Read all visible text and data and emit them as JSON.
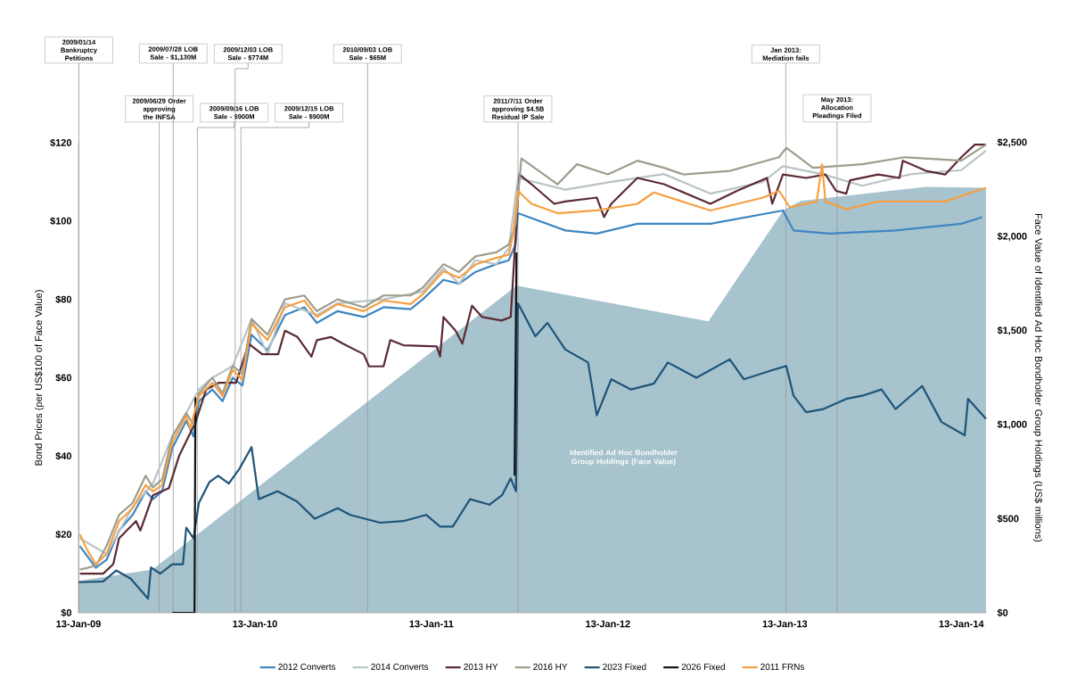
{
  "chart_data": {
    "type": "line",
    "ylabel": "Bond Prices (per US$100 of Face Value)",
    "y2label": "Face Value of Identified Ad Hoc Bondholder Group Holdings (US$ millions)",
    "xlim": [
      "2009-01-13",
      "2014-03-07"
    ],
    "xticks": [
      {
        "value": "2009-01-13",
        "label": "13-Jan-09"
      },
      {
        "value": "2010-01-13",
        "label": "13-Jan-10"
      },
      {
        "value": "2011-01-13",
        "label": "13-Jan-11"
      },
      {
        "value": "2012-01-13",
        "label": "13-Jan-12"
      },
      {
        "value": "2013-01-13",
        "label": "13-Jan-13"
      },
      {
        "value": "2014-01-13",
        "label": "13-Jan-14"
      }
    ],
    "ylim": [
      0,
      120
    ],
    "yticks": [
      {
        "value": 0,
        "label": "$0"
      },
      {
        "value": 20,
        "label": "$20"
      },
      {
        "value": 40,
        "label": "$40"
      },
      {
        "value": 60,
        "label": "$60"
      },
      {
        "value": 80,
        "label": "$80"
      },
      {
        "value": 100,
        "label": "$100"
      },
      {
        "value": 120,
        "label": "$120"
      }
    ],
    "y2lim": [
      0,
      2500
    ],
    "y2ticks": [
      {
        "value": 0,
        "label": "$0"
      },
      {
        "value": 500,
        "label": "$500"
      },
      {
        "value": 1000,
        "label": "$1,000"
      },
      {
        "value": 1500,
        "label": "$1,500"
      },
      {
        "value": 2000,
        "label": "$2,000"
      },
      {
        "value": 2500,
        "label": "$2,500"
      }
    ],
    "legend": "bottom",
    "line_style": "solid",
    "series": [
      {
        "type": "area",
        "axis": "y2",
        "name": "Identified Ad Hoc Bondholder Group Holdings (Face Value)",
        "color": "#a7c3ce",
        "x": [
          "2009-01-13",
          "2009-06-15",
          "2011-07-08",
          "2012-08-08",
          "2013-01-10",
          "2013-02-15",
          "2013-11-01",
          "2014-03-05"
        ],
        "values": [
          170,
          230,
          1740,
          1550,
          2140,
          2190,
          2265,
          2260
        ]
      },
      {
        "name": "2012 Converts",
        "color": "#3d86c0",
        "x": [
          "2009-01-16",
          "2009-02-18",
          "2009-03-12",
          "2009-04-07",
          "2009-05-05",
          "2009-06-01",
          "2009-06-16",
          "2009-07-05",
          "2009-07-26",
          "2009-08-24",
          "2009-09-08",
          "2009-09-19",
          "2009-10-17",
          "2009-11-07",
          "2009-11-28",
          "2009-12-18",
          "2010-01-06",
          "2010-02-08",
          "2010-03-16",
          "2010-04-25",
          "2010-05-21",
          "2010-07-03",
          "2010-08-26",
          "2010-10-06",
          "2010-12-01",
          "2010-12-26",
          "2011-02-07",
          "2011-03-11",
          "2011-04-14",
          "2011-05-27",
          "2011-06-22",
          "2011-07-06",
          "2011-07-11",
          "2011-10-17",
          "2011-12-21",
          "2012-03-14",
          "2012-08-12",
          "2013-01-09",
          "2013-01-31",
          "2013-04-14",
          "2013-08-30",
          "2014-01-13",
          "2014-02-25"
        ],
        "values": [
          17,
          11.5,
          13.5,
          21,
          25,
          31,
          29,
          31,
          42,
          49,
          45,
          54,
          57,
          54,
          60,
          58,
          71,
          67,
          76,
          78,
          74,
          77,
          75.5,
          78,
          77.5,
          80,
          85,
          84,
          87,
          89,
          90,
          94,
          102,
          97.6,
          96.8,
          99.3,
          99.3,
          102.7,
          97.6,
          96.8,
          97.6,
          99.3,
          101
        ]
      },
      {
        "name": "2014 Converts",
        "color": "#b8c4c8",
        "x": [
          "2009-01-16",
          "2009-03-12",
          "2009-05-05",
          "2009-06-16",
          "2009-07-26",
          "2009-08-24",
          "2009-09-19",
          "2009-10-17",
          "2009-11-28",
          "2010-01-06",
          "2010-02-08",
          "2010-03-16",
          "2010-05-21",
          "2010-07-03",
          "2010-10-06",
          "2010-12-26",
          "2011-02-07",
          "2011-03-11",
          "2011-04-14",
          "2011-05-27",
          "2011-06-22",
          "2011-07-11",
          "2011-10-17",
          "2012-01-20",
          "2012-05-08",
          "2012-08-12",
          "2012-11-29",
          "2013-01-09",
          "2013-03-31",
          "2013-06-22",
          "2013-10-02",
          "2014-01-13",
          "2014-03-05"
        ],
        "values": [
          19,
          15,
          27,
          33,
          45,
          51,
          57,
          60,
          63,
          75,
          66,
          79,
          76,
          79,
          80,
          82,
          88,
          84,
          90,
          89,
          93,
          111,
          108,
          110,
          112,
          107,
          110,
          114,
          112,
          109,
          112,
          113,
          118
        ]
      },
      {
        "name": "2013 HY",
        "color": "#5b2a33",
        "x": [
          "2009-01-16",
          "2009-03-05",
          "2009-03-26",
          "2009-04-07",
          "2009-05-12",
          "2009-05-21",
          "2009-06-16",
          "2009-07-19",
          "2009-08-09",
          "2009-09-12",
          "2009-10-04",
          "2009-10-30",
          "2009-12-05",
          "2009-12-31",
          "2010-01-28",
          "2010-03-02",
          "2010-03-16",
          "2010-04-11",
          "2010-05-10",
          "2010-05-21",
          "2010-06-19",
          "2010-07-14",
          "2010-08-26",
          "2010-09-06",
          "2010-10-06",
          "2010-10-20",
          "2010-11-16",
          "2011-01-24",
          "2011-01-31",
          "2011-02-07",
          "2011-03-04",
          "2011-03-18",
          "2011-04-07",
          "2011-04-28",
          "2011-06-07",
          "2011-06-26",
          "2011-07-14",
          "2011-08-08",
          "2011-09-24",
          "2011-10-17",
          "2011-12-21",
          "2012-01-05",
          "2012-01-20",
          "2012-03-14",
          "2012-05-08",
          "2012-08-12",
          "2012-10-06",
          "2012-12-07",
          "2012-12-18",
          "2013-01-09",
          "2013-02-26",
          "2013-04-07",
          "2013-04-29",
          "2013-05-20",
          "2013-05-28",
          "2013-07-25",
          "2013-09-07",
          "2013-09-14",
          "2013-11-01",
          "2013-12-11",
          "2014-01-13",
          "2014-02-10",
          "2014-03-05"
        ],
        "values": [
          10,
          10,
          12.4,
          19,
          23.4,
          21,
          30,
          31.8,
          40,
          48.6,
          57,
          58.7,
          58.7,
          68.7,
          66,
          66,
          72,
          70.4,
          65.4,
          69.6,
          70.4,
          68.7,
          66,
          62.9,
          62.9,
          69.6,
          68.3,
          68,
          65.4,
          75.5,
          72,
          68.7,
          78.4,
          75.5,
          74.6,
          75.5,
          111.9,
          109.4,
          104.4,
          105,
          106,
          101,
          104.4,
          111,
          109.4,
          104.4,
          107.7,
          111,
          104.4,
          111.9,
          111,
          111.9,
          107.7,
          107,
          110.4,
          111.9,
          111,
          115.4,
          112.8,
          111.9,
          116.3,
          119.5,
          119.5
        ]
      },
      {
        "name": "2016 HY",
        "color": "#9e9d8e",
        "x": [
          "2009-01-16",
          "2009-02-18",
          "2009-03-12",
          "2009-04-07",
          "2009-05-05",
          "2009-06-01",
          "2009-06-16",
          "2009-07-05",
          "2009-07-26",
          "2009-08-24",
          "2009-09-08",
          "2009-09-19",
          "2009-10-17",
          "2009-11-07",
          "2009-11-28",
          "2009-12-18",
          "2010-01-06",
          "2010-02-08",
          "2010-03-16",
          "2010-04-25",
          "2010-05-21",
          "2010-07-03",
          "2010-08-26",
          "2010-10-06",
          "2010-12-01",
          "2010-12-26",
          "2011-02-07",
          "2011-03-11",
          "2011-04-14",
          "2011-05-27",
          "2011-06-22",
          "2011-07-06",
          "2011-07-18",
          "2011-10-01",
          "2011-11-10",
          "2012-01-13",
          "2012-03-14",
          "2012-05-08",
          "2012-06-17",
          "2012-09-21",
          "2013-01-01",
          "2013-01-16",
          "2013-03-12",
          "2013-06-22",
          "2013-09-18",
          "2014-01-13",
          "2014-03-05"
        ],
        "values": [
          11,
          12,
          17,
          25,
          28,
          35,
          32,
          34,
          45,
          51,
          48,
          56,
          60,
          56,
          63,
          61,
          75,
          71,
          80,
          81,
          77,
          80,
          78,
          81,
          81,
          83,
          89,
          87,
          91,
          92,
          94,
          99,
          116,
          109.4,
          114.5,
          111.9,
          115.4,
          113.6,
          111.9,
          112.8,
          116.3,
          118.7,
          113.6,
          114.5,
          116.3,
          115.4,
          119.5
        ]
      },
      {
        "name": "2023 Fixed",
        "color": "#1e5478",
        "x": [
          "2009-01-13",
          "2009-03-05",
          "2009-04-01",
          "2009-05-01",
          "2009-06-06",
          "2009-06-12",
          "2009-07-01",
          "2009-07-26",
          "2009-08-17",
          "2009-08-24",
          "2009-09-08",
          "2009-09-19",
          "2009-10-11",
          "2009-10-29",
          "2009-11-20",
          "2009-12-12",
          "2010-01-06",
          "2010-01-21",
          "2010-03-01",
          "2010-04-10",
          "2010-05-17",
          "2010-07-03",
          "2010-07-29",
          "2010-09-29",
          "2010-11-16",
          "2011-01-02",
          "2011-01-31",
          "2011-02-26",
          "2011-04-03",
          "2011-05-13",
          "2011-06-08",
          "2011-06-26",
          "2011-07-07",
          "2011-07-11",
          "2011-08-16",
          "2011-09-10",
          "2011-10-17",
          "2011-12-03",
          "2011-12-21",
          "2012-01-20",
          "2012-03-01",
          "2012-04-17",
          "2012-05-16",
          "2012-07-14",
          "2012-09-21",
          "2012-10-20",
          "2012-12-25",
          "2013-01-16",
          "2013-01-31",
          "2013-02-26",
          "2013-04-03",
          "2013-05-20",
          "2013-06-22",
          "2013-08-01",
          "2013-08-30",
          "2013-10-24",
          "2013-12-03",
          "2014-01-20",
          "2014-01-27",
          "2014-03-05"
        ],
        "values": [
          7.8,
          8,
          10.8,
          8.7,
          3.6,
          11.6,
          10,
          12.4,
          12.4,
          21.7,
          19,
          28,
          33.4,
          35,
          33,
          36.8,
          42.3,
          29,
          31,
          28.4,
          24,
          26.7,
          25,
          23,
          23.4,
          25,
          22,
          22,
          29,
          27.6,
          30,
          34.3,
          31,
          79,
          70.6,
          74,
          67.2,
          63.9,
          50.4,
          59.6,
          57,
          58.5,
          63.9,
          60,
          64.7,
          59.6,
          62.2,
          63,
          55.4,
          51.2,
          52,
          54.6,
          55.4,
          57,
          52,
          57.9,
          48.7,
          45.3,
          54.6,
          49.5
        ]
      },
      {
        "name": "2026 Fixed",
        "color": "#111111",
        "x": [
          "2009-07-26",
          "2009-09-10",
          "2009-09-12",
          "2010-06-01",
          "2011-07-04",
          "2011-07-08"
        ],
        "values": [
          0,
          0,
          55,
          null,
          35,
          92
        ]
      },
      {
        "name": "2011 FRNs",
        "color": "#f5a043",
        "x": [
          "2009-01-16",
          "2009-02-01",
          "2009-02-18",
          "2009-03-12",
          "2009-04-07",
          "2009-05-05",
          "2009-06-01",
          "2009-06-16",
          "2009-07-05",
          "2009-07-26",
          "2009-08-24",
          "2009-09-01",
          "2009-09-19",
          "2009-10-17",
          "2009-11-07",
          "2009-11-28",
          "2009-12-18",
          "2010-01-06",
          "2010-02-08",
          "2010-03-16",
          "2010-04-25",
          "2010-05-21",
          "2010-07-03",
          "2010-08-26",
          "2010-10-06",
          "2010-12-01",
          "2010-12-26",
          "2011-02-07",
          "2011-03-11",
          "2011-04-14",
          "2011-05-27",
          "2011-06-22",
          "2011-07-01",
          "2011-07-11",
          "2011-08-08",
          "2011-10-01",
          "2011-12-21",
          "2012-03-14",
          "2012-04-17",
          "2012-08-12",
          "2012-11-29",
          "2013-01-01",
          "2013-01-23",
          "2013-03-20",
          "2013-03-31",
          "2013-04-07",
          "2013-05-20",
          "2013-07-25",
          "2013-10-02",
          "2013-12-11",
          "2014-03-05"
        ],
        "values": [
          20,
          15.8,
          12.4,
          15,
          23.4,
          26.7,
          32.6,
          31,
          32.6,
          43.5,
          50.3,
          47,
          55.3,
          58.7,
          55.3,
          62,
          59.5,
          73.8,
          69.6,
          78,
          79.7,
          75.5,
          78.8,
          77,
          79.7,
          78.8,
          81.3,
          87.2,
          85.5,
          88.9,
          90.6,
          91.4,
          96.5,
          107.7,
          104.4,
          102,
          102.7,
          104.4,
          107.3,
          102.7,
          106,
          107.7,
          103.5,
          105,
          114.5,
          105,
          103,
          105,
          105,
          105,
          108.5
        ]
      }
    ],
    "ref_lines": [
      {
        "axis": "x",
        "value": "2009-01-14",
        "label": "2009/01/14 Bankruptcy Petitions"
      },
      {
        "axis": "x",
        "value": "2009-06-29",
        "label": "2009/06/29 Order approving the INFSA"
      },
      {
        "axis": "x",
        "value": "2009-07-28",
        "label": "2009/07/28 LOB Sale - $1,130M"
      },
      {
        "axis": "x",
        "value": "2009-09-16",
        "label": "2009/09/16 LOB Sale - $900M"
      },
      {
        "axis": "x",
        "value": "2009-12-03",
        "label": "2009/12/03 LOB Sale - $774M"
      },
      {
        "axis": "x",
        "value": "2009-12-15",
        "label": "2009/12/15 LOB Sale - $900M"
      },
      {
        "axis": "x",
        "value": "2010-09-03",
        "label": "2010/09/03 LOB Sale - $65M"
      },
      {
        "axis": "x",
        "value": "2011-07-11",
        "label": "2011/7/11 Order approving $4.5B Residual IP Sale"
      },
      {
        "axis": "x",
        "value": "2013-01-15",
        "label": "Jan 2013: Mediation fails"
      },
      {
        "axis": "x",
        "value": "2013-05-01",
        "label": "May 2013: Allocation Pleadings Filed"
      }
    ]
  }
}
